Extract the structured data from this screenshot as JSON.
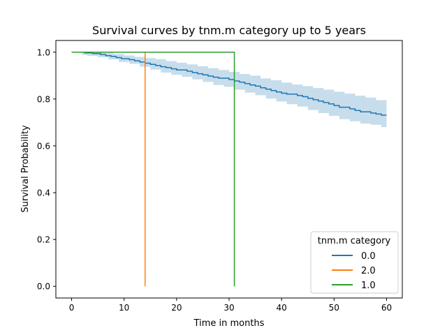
{
  "chart_data": {
    "type": "line",
    "title": "Survival curves by tnm.m category up to 5 years",
    "xlabel": "Time in months",
    "ylabel": "Survival Probability",
    "xlim": [
      -3,
      63
    ],
    "ylim": [
      -0.05,
      1.05
    ],
    "xticks": [
      0,
      10,
      20,
      30,
      40,
      50,
      60
    ],
    "xtick_labels": [
      "0",
      "10",
      "20",
      "30",
      "40",
      "50",
      "60"
    ],
    "yticks": [
      0.0,
      0.2,
      0.4,
      0.6,
      0.8,
      1.0
    ],
    "ytick_labels": [
      "0.0",
      "0.2",
      "0.4",
      "0.6",
      "0.8",
      "1.0"
    ],
    "grid": false,
    "legend": {
      "title": "tnm.m category",
      "placement": "lower-right"
    },
    "step": true,
    "series": [
      {
        "name": "0.0",
        "color": "#1f77b4",
        "band_color": "#1f77b4",
        "points": [
          [
            2,
            1.0
          ],
          [
            2.5,
            0.997
          ],
          [
            4,
            0.994
          ],
          [
            5.5,
            0.99
          ],
          [
            6.5,
            0.985
          ],
          [
            7.5,
            0.982
          ],
          [
            8.5,
            0.977
          ],
          [
            9.5,
            0.972
          ],
          [
            11,
            0.968
          ],
          [
            12,
            0.963
          ],
          [
            13,
            0.958
          ],
          [
            14,
            0.953
          ],
          [
            15,
            0.948
          ],
          [
            16,
            0.943
          ],
          [
            17,
            0.938
          ],
          [
            18,
            0.934
          ],
          [
            19,
            0.929
          ],
          [
            20,
            0.924
          ],
          [
            22,
            0.919
          ],
          [
            23,
            0.913
          ],
          [
            24,
            0.908
          ],
          [
            25,
            0.903
          ],
          [
            26,
            0.898
          ],
          [
            27,
            0.893
          ],
          [
            28,
            0.889
          ],
          [
            30,
            0.883
          ],
          [
            31,
            0.877
          ],
          [
            32,
            0.872
          ],
          [
            33,
            0.866
          ],
          [
            34,
            0.86
          ],
          [
            35,
            0.855
          ],
          [
            36,
            0.848
          ],
          [
            37,
            0.842
          ],
          [
            38,
            0.836
          ],
          [
            39,
            0.83
          ],
          [
            40,
            0.825
          ],
          [
            41,
            0.821
          ],
          [
            43,
            0.815
          ],
          [
            44,
            0.81
          ],
          [
            45,
            0.803
          ],
          [
            46,
            0.797
          ],
          [
            47,
            0.791
          ],
          [
            48,
            0.785
          ],
          [
            49,
            0.779
          ],
          [
            50,
            0.772
          ],
          [
            51,
            0.765
          ],
          [
            53,
            0.758
          ],
          [
            54,
            0.751
          ],
          [
            55,
            0.745
          ],
          [
            57,
            0.74
          ],
          [
            58,
            0.736
          ],
          [
            59,
            0.731
          ],
          [
            60,
            0.731
          ]
        ],
        "ci_lower": [
          [
            2,
            0.988
          ],
          [
            3,
            0.984
          ],
          [
            5,
            0.979
          ],
          [
            7,
            0.969
          ],
          [
            9,
            0.958
          ],
          [
            11,
            0.95
          ],
          [
            13,
            0.938
          ],
          [
            15,
            0.926
          ],
          [
            17,
            0.913
          ],
          [
            19,
            0.903
          ],
          [
            21,
            0.895
          ],
          [
            23,
            0.884
          ],
          [
            25,
            0.873
          ],
          [
            27,
            0.86
          ],
          [
            29,
            0.852
          ],
          [
            31,
            0.84
          ],
          [
            33,
            0.827
          ],
          [
            35,
            0.816
          ],
          [
            37,
            0.802
          ],
          [
            39,
            0.789
          ],
          [
            41,
            0.778
          ],
          [
            43,
            0.768
          ],
          [
            45,
            0.753
          ],
          [
            47,
            0.74
          ],
          [
            49,
            0.728
          ],
          [
            51,
            0.714
          ],
          [
            53,
            0.705
          ],
          [
            55,
            0.695
          ],
          [
            57,
            0.69
          ],
          [
            59,
            0.68
          ],
          [
            60,
            0.675
          ]
        ],
        "ci_upper": [
          [
            2,
            1.0
          ],
          [
            4,
            1.0
          ],
          [
            6,
            0.997
          ],
          [
            8,
            0.992
          ],
          [
            10,
            0.986
          ],
          [
            12,
            0.98
          ],
          [
            14,
            0.975
          ],
          [
            16,
            0.97
          ],
          [
            18,
            0.962
          ],
          [
            20,
            0.955
          ],
          [
            22,
            0.948
          ],
          [
            24,
            0.94
          ],
          [
            26,
            0.932
          ],
          [
            28,
            0.924
          ],
          [
            30,
            0.916
          ],
          [
            32,
            0.907
          ],
          [
            34,
            0.9
          ],
          [
            36,
            0.888
          ],
          [
            38,
            0.88
          ],
          [
            40,
            0.87
          ],
          [
            42,
            0.862
          ],
          [
            44,
            0.855
          ],
          [
            46,
            0.847
          ],
          [
            48,
            0.84
          ],
          [
            50,
            0.831
          ],
          [
            52,
            0.823
          ],
          [
            54,
            0.814
          ],
          [
            56,
            0.806
          ],
          [
            58,
            0.795
          ],
          [
            60,
            0.79
          ]
        ]
      },
      {
        "name": "2.0",
        "color": "#ff7f0e",
        "points": [
          [
            0,
            1.0
          ],
          [
            14,
            1.0
          ],
          [
            14,
            0.0
          ]
        ]
      },
      {
        "name": "1.0",
        "color": "#2ca02c",
        "points": [
          [
            0,
            1.0
          ],
          [
            31,
            1.0
          ],
          [
            31,
            0.0
          ]
        ]
      }
    ]
  }
}
